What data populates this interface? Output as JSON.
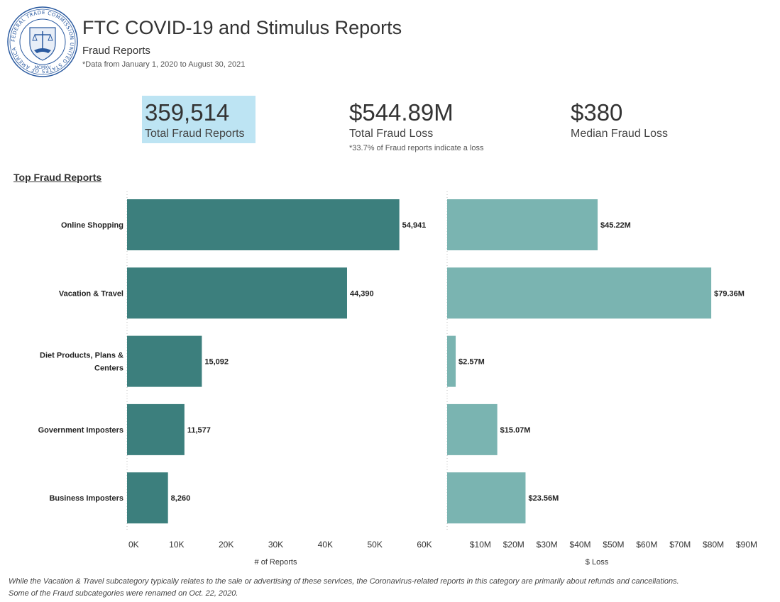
{
  "header": {
    "title": "FTC COVID-19 and Stimulus Reports",
    "subtitle": "Fraud Reports",
    "date_range": "*Data from January 1, 2020 to August 30, 2021"
  },
  "seal": {
    "ring_text": "FEDERAL TRADE COMMISSION UNITED STATES OF AMERICA",
    "year": "MCMXV"
  },
  "kpis": [
    {
      "value": "359,514",
      "label": "Total Fraud Reports"
    },
    {
      "value": "$544.89M",
      "label": "Total Fraud Loss",
      "note": "*33.7% of Fraud reports indicate a loss"
    },
    {
      "value": "$380",
      "label": "Median Fraud Loss"
    }
  ],
  "section_title": "Top Fraud Reports",
  "colors": {
    "reports_bar": "#3c7f7d",
    "loss_bar": "#7ab4b1",
    "kpi_highlight": "#bde4f3",
    "axis_text": "#333333"
  },
  "chart_data": [
    {
      "type": "bar",
      "orientation": "horizontal",
      "categories": [
        "Online Shopping",
        "Vacation & Travel",
        "Diet Products, Plans & Centers",
        "Government Imposters",
        "Business Imposters"
      ],
      "category_lines": [
        [
          "Online Shopping"
        ],
        [
          "Vacation & Travel"
        ],
        [
          "Diet Products, Plans &",
          "Centers"
        ],
        [
          "Government Imposters"
        ],
        [
          "Business Imposters"
        ]
      ],
      "values": [
        54941,
        44390,
        15092,
        11577,
        8260
      ],
      "data_labels": [
        "54,941",
        "44,390",
        "15,092",
        "11,577",
        "8,260"
      ],
      "xlabel": "# of Reports",
      "xlim": [
        0,
        60000
      ],
      "ticks": [
        0,
        10000,
        20000,
        30000,
        40000,
        50000,
        60000
      ],
      "tick_labels": [
        "0K",
        "10K",
        "20K",
        "30K",
        "40K",
        "50K",
        "60K"
      ]
    },
    {
      "type": "bar",
      "orientation": "horizontal",
      "categories": [
        "Online Shopping",
        "Vacation & Travel",
        "Diet Products, Plans & Centers",
        "Government Imposters",
        "Business Imposters"
      ],
      "values": [
        45.22,
        79.36,
        2.57,
        15.07,
        23.56
      ],
      "data_labels": [
        "$45.22M",
        "$79.36M",
        "$2.57M",
        "$15.07M",
        "$23.56M"
      ],
      "xlabel": "$ Loss",
      "xlim": [
        0,
        90
      ],
      "ticks": [
        10,
        20,
        30,
        40,
        50,
        60,
        70,
        80,
        90
      ],
      "tick_labels": [
        "$10M",
        "$20M",
        "$30M",
        "$40M",
        "$50M",
        "$60M",
        "$70M",
        "$80M",
        "$90M"
      ]
    }
  ],
  "footnotes": [
    "While the Vacation & Travel subcategory typically relates to the sale or advertising of these services, the Coronavirus-related reports in this category are primarily about refunds and cancellations.",
    "Some of the Fraud subcategories were renamed on Oct. 22, 2020."
  ]
}
